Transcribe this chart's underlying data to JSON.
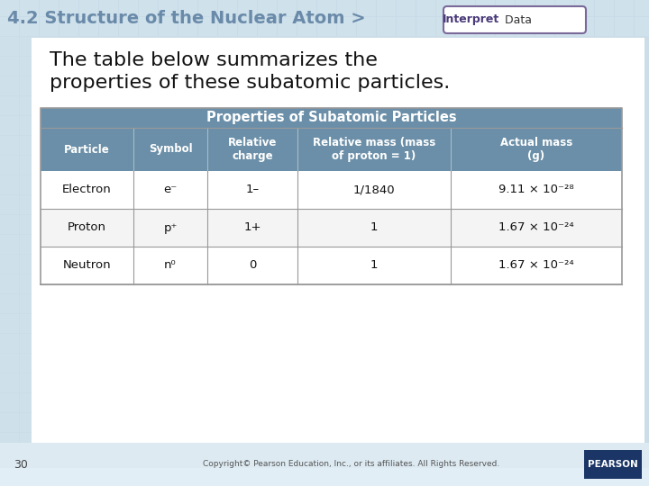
{
  "title_prefix": "4.2 Structure of the Nuclear Atom >",
  "title_prefix_color": "#6a8aaa",
  "badge_text_bold": "Interpret",
  "badge_text_normal": " Data",
  "badge_border_color": "#7a6a9a",
  "badge_fill": "#ffffff",
  "body_text_line1": "The table below summarizes the",
  "body_text_line2": "properties of these subatomic particles.",
  "table_title": "Properties of Subatomic Particles",
  "table_header_bg": "#6b8fa8",
  "table_header_text": "#ffffff",
  "table_row_bg_white": "#ffffff",
  "table_row_bg_gray": "#f4f4f4",
  "table_border_color": "#999999",
  "col_headers": [
    "Particle",
    "Symbol",
    "Relative\ncharge",
    "Relative mass (mass\nof proton = 1)",
    "Actual mass\n(g)"
  ],
  "rows": [
    [
      "Electron",
      "e⁻",
      "1–",
      "1/1840",
      "9.11 × 10⁻²⁸"
    ],
    [
      "Proton",
      "p⁺",
      "1+",
      "1",
      "1.67 × 10⁻²⁴"
    ],
    [
      "Neutron",
      "n⁰",
      "0",
      "1",
      "1.67 × 10⁻²⁴"
    ]
  ],
  "bg_color": "#ccdde8",
  "white_area_color": "#ffffff",
  "bottom_bar_color": "#ddeaf2",
  "page_number": "30",
  "copyright_text": "Copyright© Pearson Education, Inc., or its affiliates. All Rights Reserved.",
  "pearson_bg": "#1a3566",
  "tile_color_light": "#d4e6f0",
  "tile_border_color": "#bdd0dc",
  "header_bg_color": "#c8dbe6"
}
